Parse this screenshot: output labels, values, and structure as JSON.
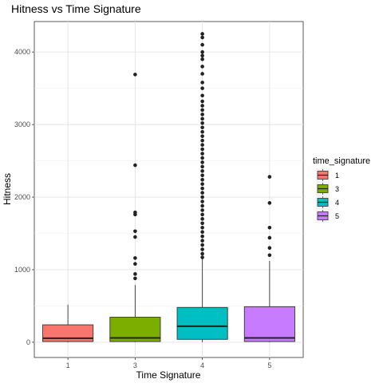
{
  "chart_data": {
    "type": "boxplot",
    "title": "Hitness vs Time Signature",
    "xlabel": "Time Signature",
    "ylabel": "Hitness",
    "categories": [
      "1",
      "3",
      "4",
      "5"
    ],
    "yticks": [
      0,
      1000,
      2000,
      3000,
      4000
    ],
    "ylim": [
      -210,
      4420
    ],
    "grid": true,
    "legend": {
      "title": "time_signature",
      "position": "right",
      "entries": [
        "1",
        "3",
        "4",
        "5"
      ]
    },
    "colors": {
      "1": "#F8766D",
      "3": "#7CAE00",
      "4": "#00BFC4",
      "5": "#C77CFF"
    },
    "boxes": [
      {
        "category": "1",
        "min": 0,
        "q1": 10,
        "median": 55,
        "q3": 240,
        "max": 520,
        "outliers": []
      },
      {
        "category": "3",
        "min": 0,
        "q1": 10,
        "median": 60,
        "q3": 345,
        "max": 790,
        "outliers": [
          880,
          940,
          1080,
          1160,
          1450,
          1530,
          1760,
          1790,
          2440,
          3690
        ]
      },
      {
        "category": "4",
        "min": 0,
        "q1": 40,
        "median": 220,
        "q3": 480,
        "max": 1150,
        "outliers": [
          1170,
          1220,
          1280,
          1340,
          1400,
          1460,
          1520,
          1580,
          1640,
          1700,
          1760,
          1820,
          1880,
          1940,
          2000,
          2060,
          2120,
          2180,
          2240,
          2300,
          2360,
          2420,
          2480,
          2540,
          2600,
          2660,
          2720,
          2780,
          2840,
          2900,
          2960,
          3020,
          3080,
          3140,
          3200,
          3260,
          3320,
          3400,
          3500,
          3580,
          3700,
          3800,
          3900,
          3950,
          4000,
          4100,
          4200,
          4250
        ]
      },
      {
        "category": "5",
        "min": 0,
        "q1": 10,
        "median": 60,
        "q3": 490,
        "max": 1120,
        "outliers": [
          1200,
          1300,
          1440,
          1580,
          1920,
          2280
        ]
      }
    ]
  }
}
